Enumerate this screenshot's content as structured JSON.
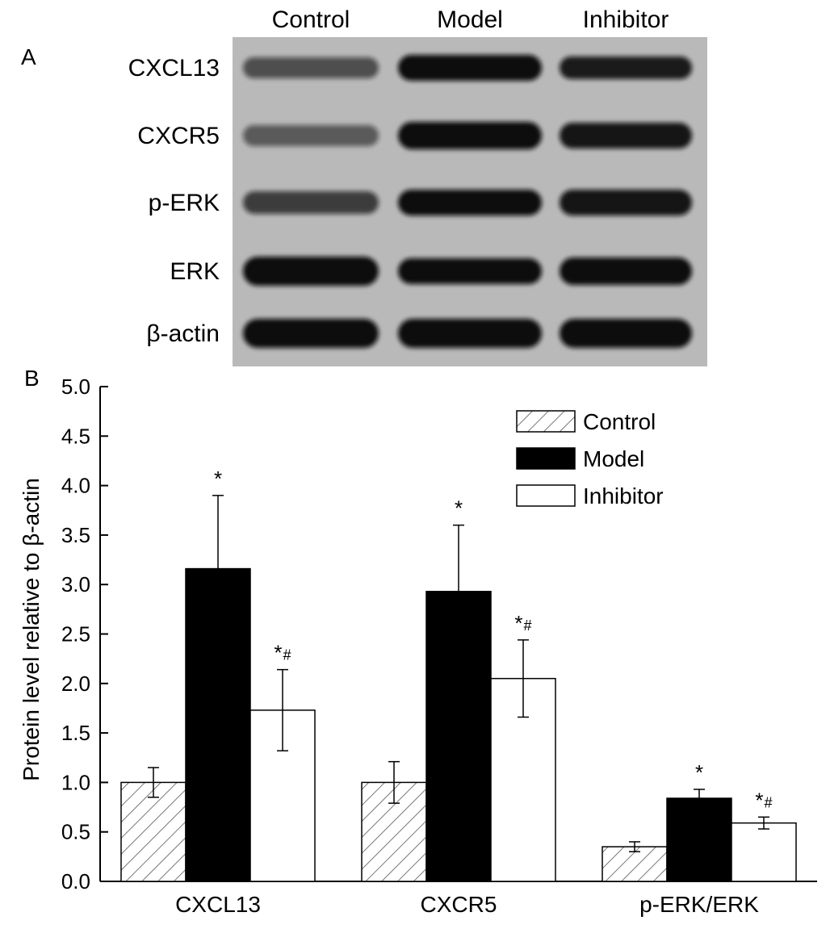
{
  "panel_a": {
    "label": "A",
    "lanes": [
      "Control",
      "Model",
      "Inhibitor"
    ],
    "rows": [
      "CXCL13",
      "CXCR5",
      "p-ERK",
      "ERK",
      "β-actin"
    ],
    "colors": {
      "blot_bg": "#b9b9b9",
      "band": "#101010"
    }
  },
  "chart_data": {
    "label": "B",
    "type": "bar",
    "categories": [
      "CXCL13",
      "CXCR5",
      "p-ERK/ERK"
    ],
    "ylabel": "Protein level relative to β-actin",
    "ylim": [
      0,
      5.0
    ],
    "yticks": [
      "0.0",
      "0.5",
      "1.0",
      "1.5",
      "2.0",
      "2.5",
      "3.0",
      "3.5",
      "4.0",
      "4.5",
      "5.0"
    ],
    "grid": false,
    "legend_position": "top-right",
    "series": [
      {
        "name": "Control",
        "values": [
          1.0,
          1.0,
          0.35
        ],
        "errors": [
          0.15,
          0.21,
          0.05
        ],
        "fill": "hatched",
        "color": "#ffffff",
        "annotations": [
          "",
          "",
          ""
        ]
      },
      {
        "name": "Model",
        "values": [
          3.16,
          2.93,
          0.84
        ],
        "errors": [
          0.74,
          0.67,
          0.09
        ],
        "fill": "solid",
        "color": "#000000",
        "annotations": [
          "*",
          "*",
          "*"
        ]
      },
      {
        "name": "Inhibitor",
        "values": [
          1.73,
          2.05,
          0.59
        ],
        "errors": [
          0.41,
          0.39,
          0.06
        ],
        "fill": "solid",
        "color": "#ffffff",
        "annotations": [
          "*#",
          "*#",
          "*#"
        ]
      }
    ]
  }
}
